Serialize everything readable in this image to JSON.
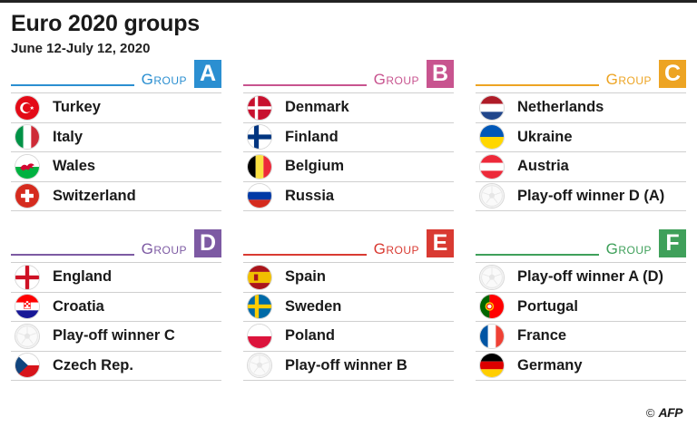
{
  "title": "Euro 2020 groups",
  "subtitle": "June 12-July 12, 2020",
  "group_word": "Group",
  "groups": [
    {
      "letter": "A",
      "color": "#2b8fd1",
      "teams": [
        {
          "name": "Turkey",
          "flag": "turkey"
        },
        {
          "name": "Italy",
          "flag": "italy"
        },
        {
          "name": "Wales",
          "flag": "wales"
        },
        {
          "name": "Switzerland",
          "flag": "switzerland"
        }
      ]
    },
    {
      "letter": "B",
      "color": "#c8548f",
      "teams": [
        {
          "name": "Denmark",
          "flag": "denmark"
        },
        {
          "name": "Finland",
          "flag": "finland"
        },
        {
          "name": "Belgium",
          "flag": "belgium"
        },
        {
          "name": "Russia",
          "flag": "russia"
        }
      ]
    },
    {
      "letter": "C",
      "color": "#eda423",
      "teams": [
        {
          "name": "Netherlands",
          "flag": "netherlands"
        },
        {
          "name": "Ukraine",
          "flag": "ukraine"
        },
        {
          "name": "Austria",
          "flag": "austria"
        },
        {
          "name": "Play-off winner D (A)",
          "flag": "ball"
        }
      ]
    },
    {
      "letter": "D",
      "color": "#7d5aa3",
      "teams": [
        {
          "name": "England",
          "flag": "england"
        },
        {
          "name": "Croatia",
          "flag": "croatia"
        },
        {
          "name": "Play-off winner C",
          "flag": "ball"
        },
        {
          "name": "Czech Rep.",
          "flag": "czech"
        }
      ]
    },
    {
      "letter": "E",
      "color": "#d93a32",
      "teams": [
        {
          "name": "Spain",
          "flag": "spain"
        },
        {
          "name": "Sweden",
          "flag": "sweden"
        },
        {
          "name": "Poland",
          "flag": "poland"
        },
        {
          "name": "Play-off winner B",
          "flag": "ball"
        }
      ]
    },
    {
      "letter": "F",
      "color": "#3fa05a",
      "teams": [
        {
          "name": "Play-off winner A (D)",
          "flag": "ball"
        },
        {
          "name": "Portugal",
          "flag": "portugal"
        },
        {
          "name": "France",
          "flag": "france"
        },
        {
          "name": "Germany",
          "flag": "germany"
        }
      ]
    }
  ],
  "credit": {
    "copyright": "©",
    "agency": "AFP"
  }
}
